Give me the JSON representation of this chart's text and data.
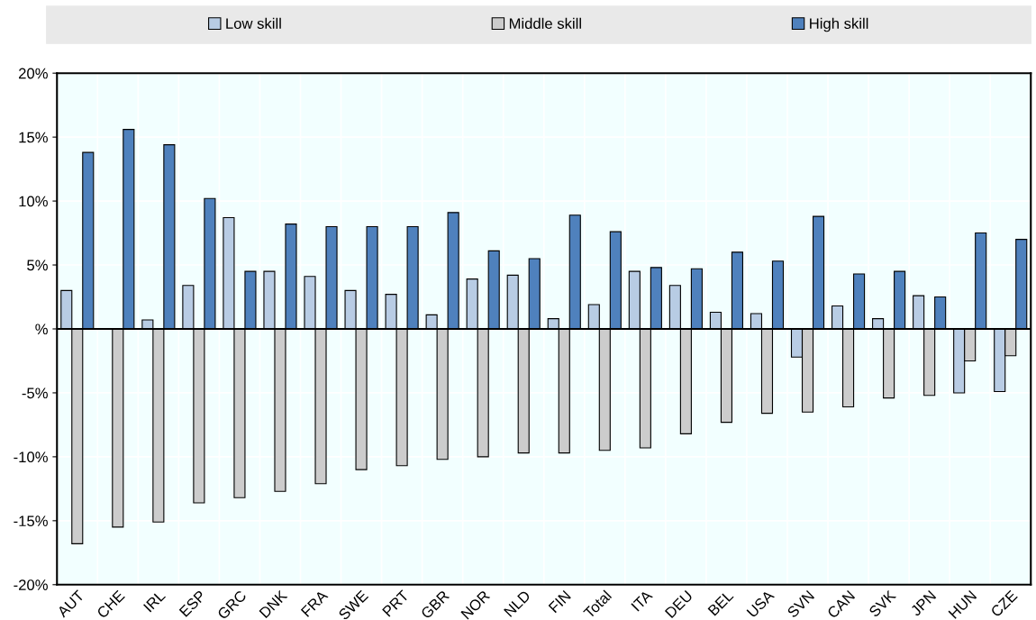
{
  "chart_data": {
    "type": "bar",
    "categories": [
      "AUT",
      "CHE",
      "IRL",
      "ESP",
      "GRC",
      "DNK",
      "FRA",
      "SWE",
      "PRT",
      "GBR",
      "NOR",
      "NLD",
      "FIN",
      "Total",
      "ITA",
      "DEU",
      "BEL",
      "USA",
      "SVN",
      "CAN",
      "SVK",
      "JPN",
      "HUN",
      "CZE"
    ],
    "series": [
      {
        "name": "Low skill",
        "color": "#b8cce4",
        "values": [
          3.0,
          null,
          0.7,
          3.4,
          8.7,
          4.5,
          4.1,
          3.0,
          2.7,
          1.1,
          3.9,
          4.2,
          0.8,
          1.9,
          4.5,
          3.4,
          1.3,
          1.2,
          -2.2,
          1.8,
          0.8,
          2.6,
          -5.0,
          -4.9
        ]
      },
      {
        "name": "Middle skill",
        "color": "#cccccc",
        "values": [
          -16.8,
          -15.5,
          -15.1,
          -13.6,
          -13.2,
          -12.7,
          -12.1,
          -11.0,
          -10.7,
          -10.2,
          -10.0,
          -9.7,
          -9.7,
          -9.5,
          -9.3,
          -8.2,
          -7.3,
          -6.6,
          -6.5,
          -6.1,
          -5.4,
          -5.2,
          -2.5,
          -2.1
        ]
      },
      {
        "name": "High skill",
        "color": "#4f81bd",
        "values": [
          13.8,
          15.6,
          14.4,
          10.2,
          4.5,
          8.2,
          8.0,
          8.0,
          8.0,
          9.1,
          6.1,
          5.5,
          8.9,
          7.6,
          4.8,
          4.7,
          6.0,
          5.3,
          8.8,
          4.3,
          4.5,
          2.5,
          7.5,
          7.0
        ]
      }
    ],
    "ylim": [
      -20,
      20
    ],
    "yticks": [
      {
        "value": -20,
        "label": "-20%"
      },
      {
        "value": -15,
        "label": "-15%"
      },
      {
        "value": -10,
        "label": "-10%"
      },
      {
        "value": -5,
        "label": "-5%"
      },
      {
        "value": 0,
        "label": "%"
      },
      {
        "value": 5,
        "label": "5%"
      },
      {
        "value": 10,
        "label": "10%"
      },
      {
        "value": 15,
        "label": "15%"
      },
      {
        "value": 20,
        "label": "20%"
      }
    ],
    "grid": true,
    "legend": "top"
  }
}
